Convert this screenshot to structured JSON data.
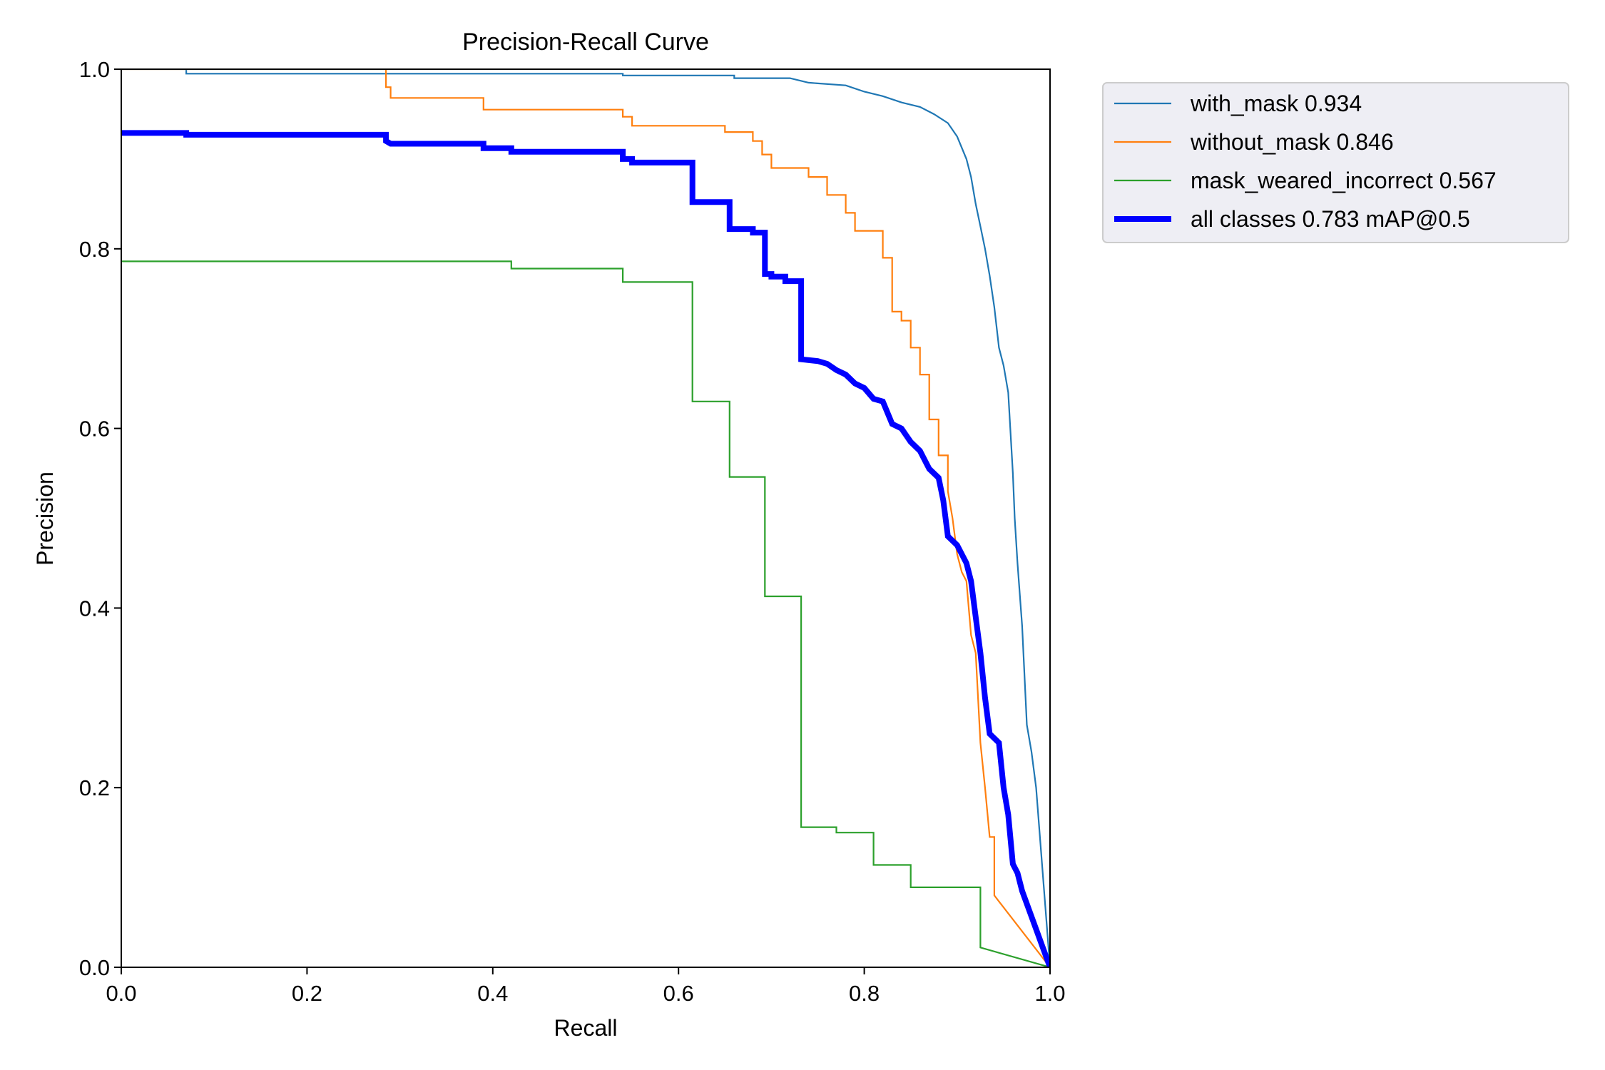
{
  "chart_data": {
    "type": "line",
    "title": "Precision-Recall Curve",
    "xlabel": "Recall",
    "ylabel": "Precision",
    "xlim": [
      0,
      1
    ],
    "ylim": [
      0,
      1
    ],
    "x_ticks": [
      "0.0",
      "0.2",
      "0.4",
      "0.6",
      "0.8",
      "1.0"
    ],
    "y_ticks": [
      "0.0",
      "0.2",
      "0.4",
      "0.6",
      "0.8",
      "1.0"
    ],
    "grid": false,
    "legend_position": "outside-top-right",
    "series": [
      {
        "name": "with_mask 0.934",
        "color": "#1f77b4",
        "weight": "thin",
        "points": [
          [
            0,
            1.0
          ],
          [
            0.07,
            1.0
          ],
          [
            0.07,
            0.995
          ],
          [
            0.54,
            0.995
          ],
          [
            0.54,
            0.993
          ],
          [
            0.66,
            0.993
          ],
          [
            0.66,
            0.99
          ],
          [
            0.72,
            0.99
          ],
          [
            0.74,
            0.985
          ],
          [
            0.78,
            0.982
          ],
          [
            0.8,
            0.975
          ],
          [
            0.82,
            0.97
          ],
          [
            0.84,
            0.963
          ],
          [
            0.86,
            0.958
          ],
          [
            0.875,
            0.95
          ],
          [
            0.89,
            0.94
          ],
          [
            0.9,
            0.925
          ],
          [
            0.91,
            0.9
          ],
          [
            0.915,
            0.88
          ],
          [
            0.92,
            0.85
          ],
          [
            0.925,
            0.825
          ],
          [
            0.93,
            0.8
          ],
          [
            0.935,
            0.77
          ],
          [
            0.94,
            0.735
          ],
          [
            0.945,
            0.69
          ],
          [
            0.95,
            0.67
          ],
          [
            0.955,
            0.64
          ],
          [
            0.96,
            0.55
          ],
          [
            0.962,
            0.5
          ],
          [
            0.965,
            0.45
          ],
          [
            0.97,
            0.38
          ],
          [
            0.975,
            0.27
          ],
          [
            0.98,
            0.24
          ],
          [
            0.985,
            0.2
          ],
          [
            1.0,
            0.0
          ]
        ]
      },
      {
        "name": "without_mask 0.846",
        "color": "#ff7f0e",
        "weight": "thin",
        "points": [
          [
            0,
            1.0
          ],
          [
            0.285,
            1.0
          ],
          [
            0.285,
            0.98
          ],
          [
            0.29,
            0.98
          ],
          [
            0.29,
            0.968
          ],
          [
            0.39,
            0.968
          ],
          [
            0.39,
            0.955
          ],
          [
            0.54,
            0.955
          ],
          [
            0.54,
            0.947
          ],
          [
            0.55,
            0.947
          ],
          [
            0.55,
            0.937
          ],
          [
            0.65,
            0.937
          ],
          [
            0.65,
            0.93
          ],
          [
            0.68,
            0.93
          ],
          [
            0.68,
            0.92
          ],
          [
            0.69,
            0.92
          ],
          [
            0.69,
            0.905
          ],
          [
            0.7,
            0.905
          ],
          [
            0.7,
            0.89
          ],
          [
            0.74,
            0.89
          ],
          [
            0.74,
            0.88
          ],
          [
            0.76,
            0.88
          ],
          [
            0.76,
            0.86
          ],
          [
            0.78,
            0.86
          ],
          [
            0.78,
            0.84
          ],
          [
            0.79,
            0.84
          ],
          [
            0.79,
            0.82
          ],
          [
            0.82,
            0.82
          ],
          [
            0.82,
            0.79
          ],
          [
            0.83,
            0.79
          ],
          [
            0.83,
            0.73
          ],
          [
            0.84,
            0.73
          ],
          [
            0.84,
            0.72
          ],
          [
            0.85,
            0.72
          ],
          [
            0.85,
            0.69
          ],
          [
            0.86,
            0.69
          ],
          [
            0.86,
            0.66
          ],
          [
            0.87,
            0.66
          ],
          [
            0.87,
            0.61
          ],
          [
            0.88,
            0.61
          ],
          [
            0.88,
            0.57
          ],
          [
            0.89,
            0.57
          ],
          [
            0.89,
            0.53
          ],
          [
            0.895,
            0.5
          ],
          [
            0.9,
            0.46
          ],
          [
            0.905,
            0.44
          ],
          [
            0.91,
            0.43
          ],
          [
            0.915,
            0.37
          ],
          [
            0.92,
            0.35
          ],
          [
            0.925,
            0.25
          ],
          [
            0.93,
            0.2
          ],
          [
            0.935,
            0.145
          ],
          [
            0.94,
            0.145
          ],
          [
            0.94,
            0.08
          ],
          [
            1.0,
            0.0
          ]
        ]
      },
      {
        "name": "mask_weared_incorrect 0.567",
        "color": "#2ca02c",
        "weight": "thin",
        "points": [
          [
            0,
            0.786
          ],
          [
            0.42,
            0.786
          ],
          [
            0.42,
            0.778
          ],
          [
            0.54,
            0.778
          ],
          [
            0.54,
            0.763
          ],
          [
            0.615,
            0.763
          ],
          [
            0.615,
            0.63
          ],
          [
            0.655,
            0.63
          ],
          [
            0.655,
            0.546
          ],
          [
            0.693,
            0.546
          ],
          [
            0.693,
            0.413
          ],
          [
            0.732,
            0.413
          ],
          [
            0.732,
            0.156
          ],
          [
            0.77,
            0.156
          ],
          [
            0.77,
            0.15
          ],
          [
            0.81,
            0.15
          ],
          [
            0.81,
            0.114
          ],
          [
            0.85,
            0.114
          ],
          [
            0.85,
            0.089
          ],
          [
            0.925,
            0.089
          ],
          [
            0.925,
            0.022
          ],
          [
            1.0,
            0.0
          ]
        ]
      },
      {
        "name": "all classes 0.783 mAP@0.5",
        "color": "#0000ff",
        "weight": "thick",
        "points": [
          [
            0,
            0.929
          ],
          [
            0.07,
            0.929
          ],
          [
            0.07,
            0.927
          ],
          [
            0.285,
            0.927
          ],
          [
            0.285,
            0.92
          ],
          [
            0.29,
            0.917
          ],
          [
            0.39,
            0.917
          ],
          [
            0.39,
            0.912
          ],
          [
            0.42,
            0.912
          ],
          [
            0.42,
            0.908
          ],
          [
            0.54,
            0.908
          ],
          [
            0.54,
            0.9
          ],
          [
            0.55,
            0.9
          ],
          [
            0.55,
            0.896
          ],
          [
            0.615,
            0.896
          ],
          [
            0.615,
            0.852
          ],
          [
            0.655,
            0.852
          ],
          [
            0.655,
            0.822
          ],
          [
            0.68,
            0.822
          ],
          [
            0.68,
            0.818
          ],
          [
            0.693,
            0.818
          ],
          [
            0.693,
            0.772
          ],
          [
            0.7,
            0.772
          ],
          [
            0.7,
            0.769
          ],
          [
            0.715,
            0.769
          ],
          [
            0.715,
            0.764
          ],
          [
            0.732,
            0.764
          ],
          [
            0.732,
            0.677
          ],
          [
            0.75,
            0.675
          ],
          [
            0.76,
            0.672
          ],
          [
            0.77,
            0.665
          ],
          [
            0.78,
            0.66
          ],
          [
            0.79,
            0.65
          ],
          [
            0.8,
            0.645
          ],
          [
            0.81,
            0.633
          ],
          [
            0.82,
            0.63
          ],
          [
            0.83,
            0.605
          ],
          [
            0.84,
            0.6
          ],
          [
            0.85,
            0.585
          ],
          [
            0.86,
            0.575
          ],
          [
            0.87,
            0.555
          ],
          [
            0.88,
            0.545
          ],
          [
            0.885,
            0.52
          ],
          [
            0.89,
            0.48
          ],
          [
            0.9,
            0.47
          ],
          [
            0.91,
            0.45
          ],
          [
            0.915,
            0.43
          ],
          [
            0.92,
            0.39
          ],
          [
            0.925,
            0.35
          ],
          [
            0.93,
            0.3
          ],
          [
            0.935,
            0.26
          ],
          [
            0.94,
            0.255
          ],
          [
            0.945,
            0.25
          ],
          [
            0.95,
            0.2
          ],
          [
            0.955,
            0.17
          ],
          [
            0.96,
            0.115
          ],
          [
            0.965,
            0.105
          ],
          [
            0.97,
            0.085
          ],
          [
            1.0,
            0.0
          ]
        ]
      }
    ]
  }
}
